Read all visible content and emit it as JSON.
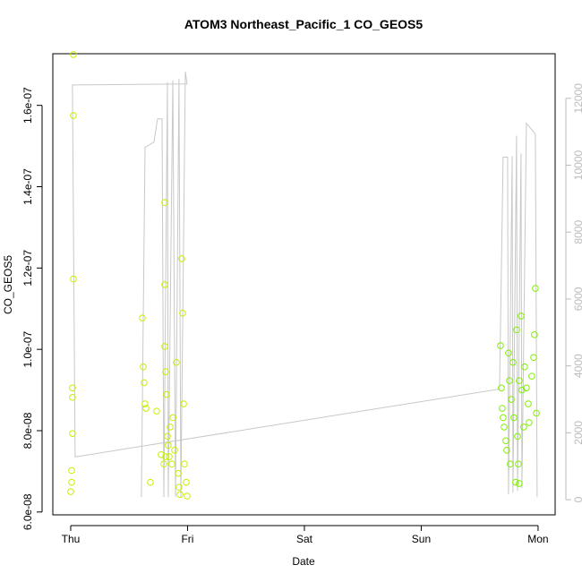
{
  "chart_data": {
    "type": "scatter",
    "title": "ATOM3 Northeast_Pacific_1 CO_GEOS5",
    "xlabel": "Date",
    "ylabel": "CO_GEOS5",
    "xlim": [
      -0.153,
      4.146
    ],
    "xticks": [
      {
        "value": 0,
        "label": "Thu"
      },
      {
        "value": 1,
        "label": "Fri"
      },
      {
        "value": 2,
        "label": "Sat"
      },
      {
        "value": 3,
        "label": "Sun"
      },
      {
        "value": 4,
        "label": "Mon"
      }
    ],
    "ylim": [
      5.93e-08,
      1.727e-07
    ],
    "yticks": [
      {
        "value": 6e-08,
        "label": "6.0e-08"
      },
      {
        "value": 8e-08,
        "label": "8.0e-08"
      },
      {
        "value": 1e-07,
        "label": "1.0e-07"
      },
      {
        "value": 1.2e-07,
        "label": "1.2e-07"
      },
      {
        "value": 1.4e-07,
        "label": "1.4e-07"
      },
      {
        "value": 1.6e-07,
        "label": "1.6e-07"
      }
    ],
    "y2lim": [
      -453,
      13333
    ],
    "y2ticks": [
      0,
      2000,
      4000,
      6000,
      8000,
      10000,
      12000
    ],
    "y2color": "#bbbbbb",
    "series": [
      {
        "type": "line",
        "axis": "y2",
        "color": "#c8c8c8",
        "x": [
          0.605,
          0.636,
          0.713,
          0.743,
          0.782,
          0.797,
          0.828,
          0.835,
          0.874,
          0.897,
          0.927,
          0.943,
          0.981,
          0.996,
          0.015,
          0.038,
          3.67,
          3.701,
          3.739,
          3.747,
          3.778,
          3.785,
          3.816,
          3.824,
          3.854,
          3.862,
          3.9,
          3.977,
          3.992
        ],
        "values": [
          80,
          10533,
          10693,
          11387,
          11387,
          80,
          12480,
          80,
          12533,
          80,
          12587,
          80,
          12800,
          12427,
          12400,
          1280,
          3307,
          10240,
          10240,
          160,
          10267,
          213,
          10880,
          267,
          10347,
          347,
          11253,
          10933,
          80
        ]
      },
      {
        "type": "scatter",
        "color": "#c4f000",
        "x": [
          0.023,
          0.023,
          0.023,
          0.015,
          0.015,
          0.015,
          0.008,
          0.008,
          0.0,
          0.613,
          0.621,
          0.628,
          0.636,
          0.644,
          0.682,
          0.736,
          0.774,
          0.797,
          0.805,
          0.805,
          0.805,
          0.812,
          0.82,
          0.835,
          0.843,
          0.851,
          0.866,
          0.874,
          0.889,
          0.904,
          0.92,
          0.927,
          0.935,
          0.95,
          0.958,
          0.966,
          0.973,
          0.989,
          0.996,
          0.812,
          0.828
        ],
        "values": [
          1.725e-07,
          1.575e-07,
          1.173e-07,
          9.05e-08,
          8.82e-08,
          7.93e-08,
          7.02e-08,
          6.73e-08,
          6.5e-08,
          1.077e-07,
          9.57e-08,
          9.18e-08,
          8.66e-08,
          8.55e-08,
          6.73e-08,
          8.48e-08,
          7.41e-08,
          7.18e-08,
          1.361e-07,
          1.159e-07,
          1.007e-07,
          9.45e-08,
          8.89e-08,
          7.64e-08,
          7.36e-08,
          8.09e-08,
          7.18e-08,
          8.32e-08,
          7.52e-08,
          9.68e-08,
          6.95e-08,
          6.61e-08,
          6.43e-08,
          1.223e-07,
          1.089e-07,
          8.66e-08,
          7.18e-08,
          6.73e-08,
          6.39e-08,
          7.36e-08,
          7.86e-08
        ]
      },
      {
        "type": "scatter",
        "color": "#80f000",
        "x": [
          3.678,
          3.686,
          3.693,
          3.701,
          3.709,
          3.724,
          3.732,
          3.747,
          3.755,
          3.762,
          3.77,
          3.785,
          3.793,
          3.808,
          3.816,
          3.824,
          3.831,
          3.839,
          3.854,
          3.862,
          3.877,
          3.885,
          3.9,
          3.916,
          3.923,
          3.946,
          3.962,
          3.969,
          3.977,
          3.985,
          3.839
        ],
        "values": [
          1.009e-07,
          9.05e-08,
          8.55e-08,
          8.32e-08,
          8.09e-08,
          7.75e-08,
          7.52e-08,
          9.91e-08,
          9.23e-08,
          7.18e-08,
          8.77e-08,
          9.68e-08,
          8.32e-08,
          6.73e-08,
          1.048e-07,
          7.86e-08,
          7.18e-08,
          9.23e-08,
          1.082e-07,
          9e-08,
          8.09e-08,
          9.57e-08,
          9.05e-08,
          8.66e-08,
          8.2e-08,
          9.34e-08,
          9.8e-08,
          1.036e-07,
          1.15e-07,
          8.43e-08,
          6.7e-08
        ]
      }
    ]
  }
}
